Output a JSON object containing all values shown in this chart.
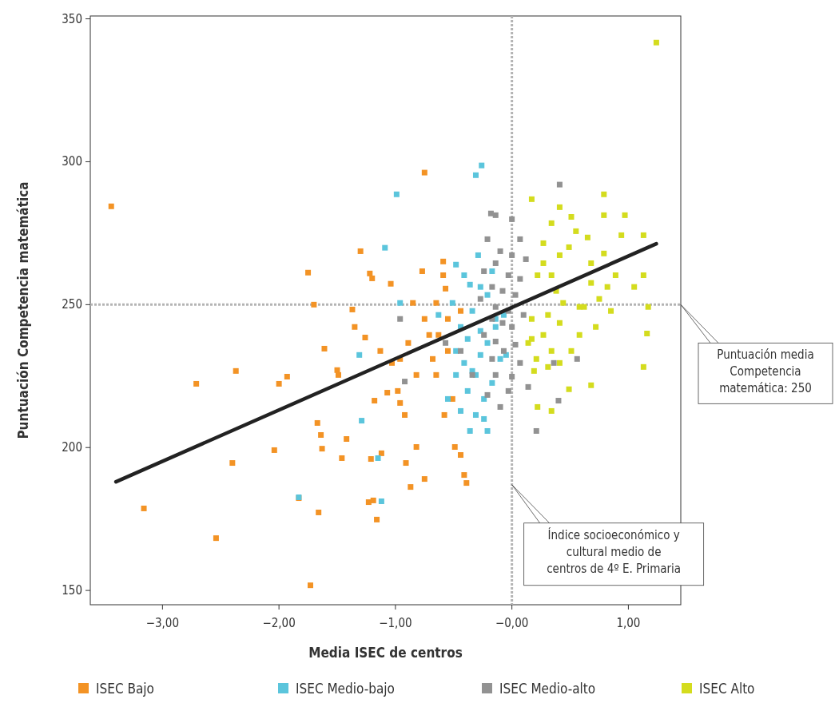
{
  "chart_data": {
    "type": "scatter",
    "xlabel": "Media ISEC de centros",
    "ylabel": "Puntuación Competencia matemática",
    "xlim": [
      -3.62,
      1.45
    ],
    "ylim": [
      145,
      351
    ],
    "xticks": [
      {
        "value": -3,
        "label": "−3,00"
      },
      {
        "value": -2,
        "label": "−2,00"
      },
      {
        "value": -1,
        "label": "−1,00"
      },
      {
        "value": 0,
        "label": "−0,00"
      },
      {
        "value": 1,
        "label": "1,00"
      }
    ],
    "yticks": [
      150,
      200,
      250,
      300,
      350
    ],
    "grid": false,
    "legend": "bottom",
    "marker": "square",
    "ref_lines": [
      {
        "axis": "x",
        "value": 0,
        "color": "#b4b4b4",
        "line_style": "dotted"
      },
      {
        "axis": "y",
        "value": 250,
        "color": "#b4b4b4",
        "line_style": "dotted"
      }
    ],
    "annotations": [
      {
        "text": "Puntuación media\nCompetencia\nmatemática: 250",
        "x": 1.45,
        "y": 250
      },
      {
        "text": "Índice socioeconómico y\ncultural medio de\ncentros de 4º E. Primaria",
        "x": 0,
        "y": 187
      }
    ],
    "series": [
      {
        "name": "ISEC Bajo",
        "color": "#f39325",
        "x": [
          -3.44,
          -3.16,
          -2.54,
          -2.71,
          -2.37,
          -2.4,
          -2.04,
          -2,
          -1.93,
          -1.83,
          -1.73,
          -1.75,
          -1.7,
          -1.67,
          -1.64,
          -1.66,
          -1.61,
          -1.63,
          -1.46,
          -1.42,
          -1.5,
          -1.49,
          -1.37,
          -1.35,
          -1.3,
          -1.26,
          -1.22,
          -1.2,
          -1.21,
          -1.18,
          -1.23,
          -1.19,
          -1.16,
          -1.12,
          -1.07,
          -1.04,
          -0.98,
          -0.96,
          -0.91,
          -0.89,
          -0.82,
          -0.77,
          -0.75,
          -0.71,
          -0.68,
          -0.65,
          -0.59,
          -0.59,
          -0.57,
          -0.55,
          -0.55,
          -0.51,
          -0.49,
          -0.44,
          -0.41,
          -0.39,
          -0.65,
          -0.82,
          -0.75,
          -0.87,
          -0.96,
          -1.13,
          -0.75,
          -0.44,
          -0.63,
          -0.85,
          -1.03,
          -0.58,
          -0.92
        ],
        "values": [
          284.4,
          178.7,
          168.3,
          222.3,
          226.8,
          194.6,
          199.1,
          222.3,
          224.8,
          182.3,
          151.8,
          261.2,
          250,
          208.6,
          204.4,
          177.3,
          234.6,
          199.6,
          196.3,
          203,
          227.1,
          225.4,
          248.3,
          242.2,
          268.7,
          238.5,
          260.9,
          259.2,
          196,
          216.4,
          180.9,
          181.5,
          174.8,
          198,
          219.2,
          257.3,
          219.8,
          231,
          194.6,
          236.6,
          225.4,
          261.7,
          296.2,
          239.4,
          231,
          250.6,
          265.1,
          260.3,
          255.6,
          245,
          233.8,
          217,
          200.2,
          197.4,
          190.4,
          187.6,
          225.4,
          200.2,
          189,
          186.2,
          215.6,
          233.8,
          245,
          247.8,
          239.4,
          250.6,
          229.6,
          211.4,
          211.4
        ]
      },
      {
        "name": "ISEC Medio-bajo",
        "color": "#5bc5dc",
        "x": [
          -1.83,
          -1.12,
          -1.15,
          -1.29,
          -1.31,
          -0.99,
          -1.09,
          -0.96,
          -0.31,
          -0.26,
          -0.48,
          -0.41,
          -0.36,
          -0.27,
          -0.21,
          -0.34,
          -0.44,
          -0.27,
          -0.14,
          -0.38,
          -0.21,
          -0.27,
          -0.41,
          -0.1,
          -0.31,
          -0.17,
          -0.48,
          -0.38,
          -0.24,
          -0.55,
          -0.44,
          -0.31,
          -0.24,
          -0.36,
          -0.14,
          -0.48,
          -0.29,
          -0.17,
          -0.07,
          -0.05,
          -0.51,
          -0.63,
          -0.21,
          -0.34
        ],
        "values": [
          182.6,
          181.2,
          196.3,
          209.4,
          232.4,
          288.6,
          269.9,
          250.6,
          295.3,
          298.7,
          264,
          260.3,
          257,
          256.2,
          253.4,
          247.8,
          242.2,
          240.8,
          245,
          238,
          236.6,
          232.4,
          229.6,
          231,
          225.4,
          222.6,
          225.4,
          219.8,
          217,
          217,
          212.8,
          211.4,
          210,
          205.8,
          242.2,
          233.8,
          267.3,
          261.7,
          246.4,
          232.4,
          250.6,
          246.4,
          205.8,
          226.8
        ]
      },
      {
        "name": "ISEC Medio-alto",
        "color": "#929292",
        "x": [
          0.41,
          -0.18,
          -0.14,
          0,
          0.07,
          -0.21,
          -0.1,
          0,
          0.12,
          -0.14,
          -0.24,
          -0.03,
          0.07,
          -0.17,
          -0.08,
          0.03,
          -0.27,
          -0.14,
          -0.03,
          0.1,
          -0.17,
          -0.08,
          0,
          -0.24,
          -0.14,
          0.03,
          -0.07,
          -0.17,
          0.07,
          -0.14,
          0,
          0.14,
          -0.03,
          -0.21,
          -0.1,
          0.4,
          0.21,
          0.36,
          0.56,
          -0.92,
          -0.96,
          -0.57,
          -0.44,
          -0.34
        ],
        "values": [
          292,
          281.9,
          281.3,
          279.9,
          272.9,
          272.9,
          268.7,
          267.3,
          265.9,
          264.5,
          261.7,
          260.3,
          259,
          256.2,
          254.8,
          253.4,
          252,
          249.2,
          247.8,
          246.4,
          245,
          243.6,
          242.2,
          239.4,
          237.1,
          236,
          233.8,
          231,
          229.6,
          225.4,
          224.8,
          221.2,
          219.8,
          218.4,
          214.2,
          216.4,
          205.8,
          229.6,
          231,
          223.1,
          245,
          236.6,
          233.8,
          225.4
        ]
      },
      {
        "name": "ISEC Alto",
        "color": "#d4dc1e",
        "x": [
          1.24,
          0.17,
          0.41,
          0.79,
          0.79,
          0.97,
          0.94,
          1.13,
          1.13,
          0.89,
          1.05,
          1.17,
          1.16,
          1.13,
          0.85,
          0.82,
          0.68,
          0.55,
          0.49,
          0.34,
          0.27,
          0.41,
          0.27,
          0.34,
          0.22,
          0.68,
          0.38,
          0.44,
          0.58,
          0.31,
          0.17,
          0.41,
          0.72,
          0.27,
          0.14,
          0.34,
          0.51,
          0.21,
          0.41,
          0.58,
          0.19,
          0.31,
          0.68,
          0.49,
          0.22,
          0.34,
          0.62,
          0.75,
          0.79,
          0.65,
          0.51,
          0.17
        ],
        "values": [
          341.7,
          286.9,
          284.1,
          288.6,
          281.3,
          281.3,
          274.3,
          274.3,
          260.3,
          260.3,
          256.2,
          249.2,
          239.9,
          228.2,
          247.8,
          256.2,
          264.5,
          275.7,
          270.1,
          278.5,
          271.5,
          267.3,
          264.5,
          260.3,
          260.3,
          257.6,
          254.8,
          250.6,
          249.2,
          246.4,
          245,
          243.6,
          242.2,
          239.4,
          236.6,
          233.8,
          233.8,
          231,
          229.6,
          239.4,
          226.8,
          228.2,
          221.8,
          220.4,
          214.2,
          212.8,
          249.2,
          252,
          267.9,
          273.5,
          280.7,
          238
        ]
      },
      {
        "type": "line",
        "color": "#222222",
        "marker": "none",
        "x": [
          -3.4,
          1.24
        ],
        "values": [
          188,
          271.3
        ]
      }
    ]
  }
}
